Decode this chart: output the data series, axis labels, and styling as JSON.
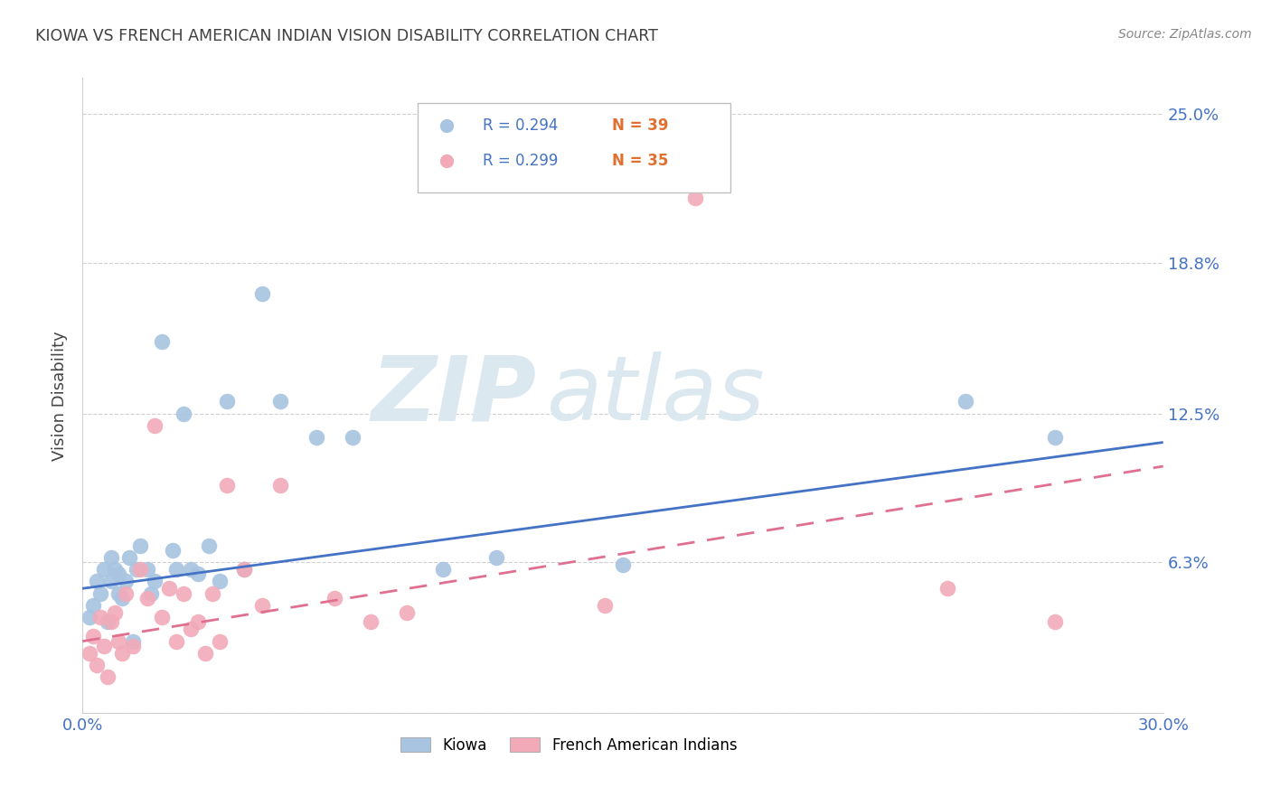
{
  "title": "KIOWA VS FRENCH AMERICAN INDIAN VISION DISABILITY CORRELATION CHART",
  "source": "Source: ZipAtlas.com",
  "ylabel": "Vision Disability",
  "xlim": [
    0.0,
    0.3
  ],
  "ylim": [
    0.0,
    0.265
  ],
  "yticks": [
    0.0,
    0.063,
    0.125,
    0.188,
    0.25
  ],
  "ytick_labels": [
    "",
    "6.3%",
    "12.5%",
    "18.8%",
    "25.0%"
  ],
  "xtick_positions": [
    0.0,
    0.075,
    0.15,
    0.225,
    0.3
  ],
  "xtick_labels": [
    "0.0%",
    "",
    "",
    "",
    "30.0%"
  ],
  "kiowa_color": "#a8c4e0",
  "french_color": "#f2aab8",
  "kiowa_line_color": "#4472c4",
  "french_line_color": "#e07090",
  "legend_R_kiowa": "R = 0.294",
  "legend_N_kiowa": "N = 39",
  "legend_R_french": "R = 0.299",
  "legend_N_french": "N = 35",
  "kiowa_label": "Kiowa",
  "french_label": "French American Indians",
  "watermark_zip": "ZIP",
  "watermark_atlas": "atlas",
  "grid_color": "#d0d0d0",
  "title_color": "#404040",
  "label_color": "#4472c4",
  "tick_color": "#4472c4",
  "kiowa_x": [
    0.002,
    0.003,
    0.004,
    0.005,
    0.006,
    0.007,
    0.008,
    0.008,
    0.009,
    0.01,
    0.01,
    0.011,
    0.012,
    0.013,
    0.014,
    0.015,
    0.016,
    0.018,
    0.019,
    0.02,
    0.022,
    0.025,
    0.026,
    0.028,
    0.03,
    0.032,
    0.035,
    0.038,
    0.04,
    0.045,
    0.05,
    0.055,
    0.065,
    0.075,
    0.1,
    0.115,
    0.15,
    0.245,
    0.27
  ],
  "kiowa_y": [
    0.04,
    0.045,
    0.055,
    0.05,
    0.06,
    0.038,
    0.055,
    0.065,
    0.06,
    0.05,
    0.058,
    0.048,
    0.055,
    0.065,
    0.03,
    0.06,
    0.07,
    0.06,
    0.05,
    0.055,
    0.155,
    0.068,
    0.06,
    0.125,
    0.06,
    0.058,
    0.07,
    0.055,
    0.13,
    0.06,
    0.175,
    0.13,
    0.115,
    0.115,
    0.06,
    0.065,
    0.062,
    0.13,
    0.115
  ],
  "french_x": [
    0.002,
    0.003,
    0.004,
    0.005,
    0.006,
    0.007,
    0.008,
    0.009,
    0.01,
    0.011,
    0.012,
    0.014,
    0.016,
    0.018,
    0.02,
    0.022,
    0.024,
    0.026,
    0.028,
    0.03,
    0.032,
    0.034,
    0.036,
    0.038,
    0.04,
    0.045,
    0.05,
    0.055,
    0.07,
    0.08,
    0.09,
    0.145,
    0.17,
    0.24,
    0.27
  ],
  "french_y": [
    0.025,
    0.032,
    0.02,
    0.04,
    0.028,
    0.015,
    0.038,
    0.042,
    0.03,
    0.025,
    0.05,
    0.028,
    0.06,
    0.048,
    0.12,
    0.04,
    0.052,
    0.03,
    0.05,
    0.035,
    0.038,
    0.025,
    0.05,
    0.03,
    0.095,
    0.06,
    0.045,
    0.095,
    0.048,
    0.038,
    0.042,
    0.045,
    0.215,
    0.052,
    0.038
  ],
  "kiowa_trend_x": [
    0.0,
    0.3
  ],
  "kiowa_trend_y": [
    0.052,
    0.113
  ],
  "french_trend_x": [
    0.0,
    0.3
  ],
  "french_trend_y": [
    0.03,
    0.103
  ]
}
